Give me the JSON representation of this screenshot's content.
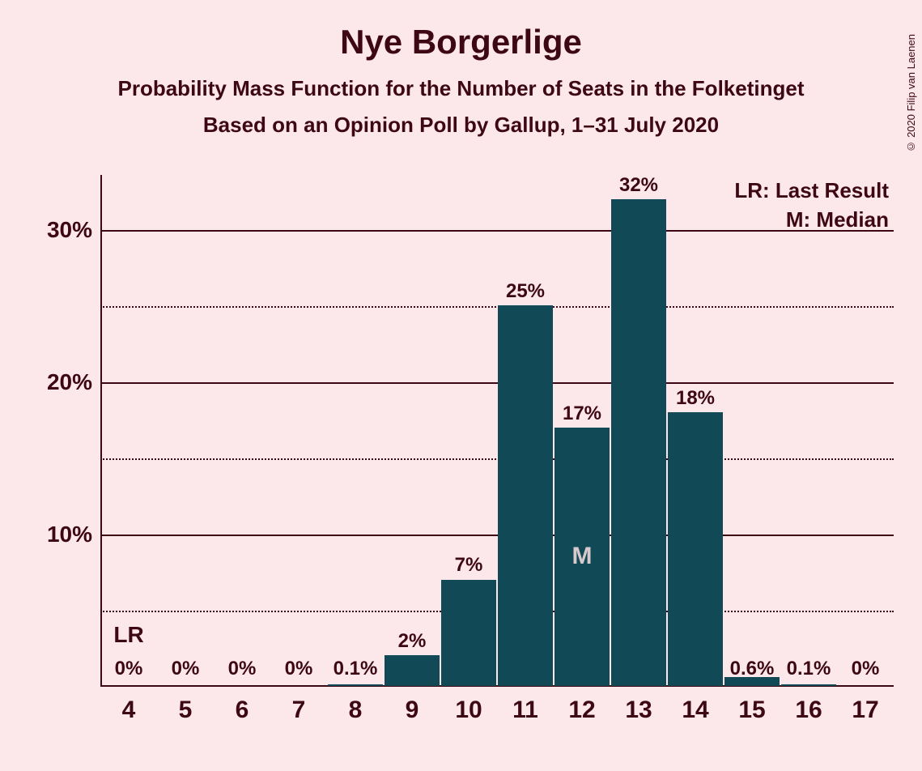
{
  "title": "Nye Borgerlige",
  "subtitle1": "Probability Mass Function for the Number of Seats in the Folketinget",
  "subtitle2": "Based on an Opinion Poll by Gallup, 1–31 July 2020",
  "copyright": "© 2020 Filip van Laenen",
  "legend": {
    "lr": "LR: Last Result",
    "m": "M: Median"
  },
  "chart": {
    "type": "bar",
    "background_color": "#fce8eb",
    "bar_color": "#114956",
    "text_color": "#3d0814",
    "median_marker_color": "#d8c9cc",
    "y_axis": {
      "min": 0,
      "max": 33,
      "major_ticks": [
        10,
        20,
        30
      ],
      "minor_ticks": [
        5,
        15,
        25
      ],
      "label_suffix": "%"
    },
    "x_categories": [
      "4",
      "5",
      "6",
      "7",
      "8",
      "9",
      "10",
      "11",
      "12",
      "13",
      "14",
      "15",
      "16",
      "17"
    ],
    "values": [
      0,
      0,
      0,
      0,
      0.1,
      2,
      7,
      25,
      17,
      32,
      18,
      0.6,
      0.1,
      0
    ],
    "value_labels": [
      "0%",
      "0%",
      "0%",
      "0%",
      "0.1%",
      "2%",
      "7%",
      "25%",
      "17%",
      "32%",
      "18%",
      "0.6%",
      "0.1%",
      "0%"
    ],
    "lr_index": 0,
    "median_index": 8,
    "lr_marker": "LR",
    "m_marker": "M",
    "bar_width_ratio": 0.96
  }
}
